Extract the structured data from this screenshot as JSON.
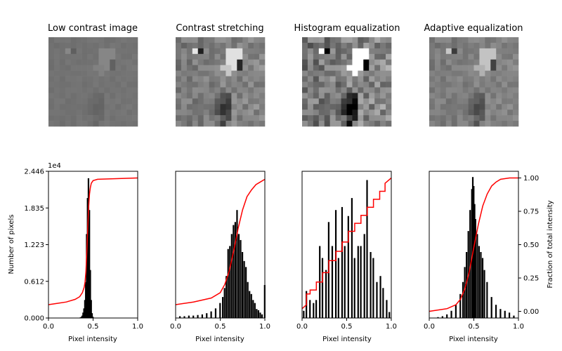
{
  "chart_data": [
    {
      "type": "image",
      "title": "Low contrast image",
      "colormap": "gray",
      "gray_range": [
        0.35,
        0.55
      ]
    },
    {
      "type": "image",
      "title": "Contrast stretching",
      "colormap": "gray",
      "gray_range": [
        0.0,
        1.0
      ]
    },
    {
      "type": "image",
      "title": "Histogram equalization",
      "colormap": "gray",
      "gray_range": [
        0.0,
        1.0
      ]
    },
    {
      "type": "image",
      "title": "Adaptive equalization",
      "colormap": "gray",
      "gray_range": [
        0.15,
        0.85
      ]
    },
    {
      "type": "bar",
      "xlabel": "Pixel intensity",
      "ylabel": "Number of pixels",
      "xlim": [
        0,
        1
      ],
      "ylim": [
        0,
        24460
      ],
      "x_ticks": [
        "0.0",
        "0.5",
        "1.0"
      ],
      "y_ticks": [
        "0.000",
        "0.612",
        "1.223",
        "1.835",
        "2.446"
      ],
      "y_tick_values": [
        0,
        6115,
        12230,
        18345,
        24460
      ],
      "y_scale_label": "1e4",
      "histogram_color": "#000000",
      "histogram_x": [
        0.36,
        0.37,
        0.38,
        0.39,
        0.4,
        0.41,
        0.42,
        0.43,
        0.44,
        0.45,
        0.46,
        0.47,
        0.48,
        0.49,
        0.5
      ],
      "histogram_values": [
        100,
        200,
        400,
        900,
        1600,
        3000,
        6000,
        14000,
        20000,
        23300,
        18000,
        8000,
        3000,
        800,
        200
      ],
      "cdf_name": "",
      "cdf_color": "#ff0000",
      "cdf_x": [
        0,
        0.1,
        0.2,
        0.3,
        0.35,
        0.38,
        0.4,
        0.41,
        0.42,
        0.43,
        0.44,
        0.45,
        0.46,
        0.47,
        0.48,
        0.5,
        0.55,
        1.0
      ],
      "cdf_y": [
        0.05,
        0.06,
        0.07,
        0.09,
        0.11,
        0.14,
        0.18,
        0.22,
        0.3,
        0.45,
        0.62,
        0.78,
        0.88,
        0.93,
        0.96,
        0.98,
        0.99,
        1.0
      ]
    },
    {
      "type": "bar",
      "xlabel": "Pixel intensity",
      "xlim": [
        0,
        1
      ],
      "ylim": [
        0,
        24460
      ],
      "x_ticks": [
        "0.0",
        "0.5",
        "1.0"
      ],
      "histogram_color": "#000000",
      "histogram_x": [
        0.05,
        0.1,
        0.15,
        0.2,
        0.25,
        0.3,
        0.35,
        0.4,
        0.45,
        0.5,
        0.53,
        0.55,
        0.57,
        0.59,
        0.61,
        0.63,
        0.65,
        0.67,
        0.69,
        0.71,
        0.73,
        0.75,
        0.77,
        0.79,
        0.81,
        0.83,
        0.85,
        0.87,
        0.89,
        0.91,
        0.93,
        0.95,
        0.97,
        1.0
      ],
      "histogram_values": [
        300,
        300,
        400,
        400,
        500,
        600,
        800,
        1100,
        1600,
        2500,
        3500,
        5000,
        7000,
        11500,
        12000,
        14000,
        15500,
        16000,
        18000,
        14000,
        13000,
        11000,
        9500,
        8500,
        6000,
        4500,
        4000,
        3000,
        2500,
        1500,
        1300,
        900,
        600,
        5500
      ],
      "cdf_color": "#ff0000",
      "cdf_x": [
        0,
        0.2,
        0.4,
        0.5,
        0.55,
        0.6,
        0.65,
        0.7,
        0.75,
        0.8,
        0.85,
        0.9,
        0.95,
        1.0
      ],
      "cdf_y": [
        0.05,
        0.07,
        0.1,
        0.14,
        0.2,
        0.3,
        0.45,
        0.62,
        0.76,
        0.86,
        0.91,
        0.95,
        0.97,
        0.99
      ]
    },
    {
      "type": "bar",
      "xlabel": "Pixel intensity",
      "xlim": [
        0,
        1
      ],
      "ylim": [
        0,
        24460
      ],
      "x_ticks": [
        "0.0",
        "0.5",
        "1.0"
      ],
      "histogram_color": "#000000",
      "histogram_x": [
        0.02,
        0.05,
        0.09,
        0.13,
        0.16,
        0.2,
        0.23,
        0.27,
        0.3,
        0.34,
        0.38,
        0.41,
        0.45,
        0.48,
        0.52,
        0.56,
        0.59,
        0.63,
        0.66,
        0.7,
        0.73,
        0.77,
        0.8,
        0.84,
        0.88,
        0.91,
        0.95,
        0.98
      ],
      "histogram_values": [
        1200,
        4500,
        3000,
        2500,
        3000,
        12000,
        10000,
        8000,
        16000,
        12000,
        18000,
        10000,
        18500,
        12000,
        17000,
        20000,
        10000,
        12000,
        12000,
        14000,
        23000,
        11000,
        10000,
        6000,
        7000,
        5000,
        3000,
        1000
      ],
      "cdf_color": "#ff0000",
      "cdf_x": [
        0,
        0.05,
        0.05,
        0.09,
        0.09,
        0.16,
        0.16,
        0.23,
        0.23,
        0.3,
        0.3,
        0.38,
        0.38,
        0.45,
        0.45,
        0.52,
        0.52,
        0.59,
        0.59,
        0.66,
        0.66,
        0.73,
        0.73,
        0.8,
        0.8,
        0.87,
        0.87,
        0.93,
        0.93,
        1.0
      ],
      "cdf_y": [
        0.02,
        0.05,
        0.13,
        0.13,
        0.16,
        0.16,
        0.22,
        0.22,
        0.29,
        0.29,
        0.38,
        0.38,
        0.45,
        0.45,
        0.52,
        0.52,
        0.6,
        0.6,
        0.66,
        0.66,
        0.72,
        0.72,
        0.78,
        0.78,
        0.84,
        0.84,
        0.9,
        0.9,
        0.96,
        1.0
      ]
    },
    {
      "type": "bar",
      "xlabel": "Pixel intensity",
      "ylabel_right": "Fraction of total intensity",
      "xlim": [
        0,
        1
      ],
      "ylim": [
        0,
        24460
      ],
      "ylim_right": [
        -0.05,
        1.05
      ],
      "x_ticks": [
        "0.0",
        "0.5",
        "1.0"
      ],
      "y_right_ticks": [
        "0.00",
        "0.25",
        "0.50",
        "0.75",
        "1.00"
      ],
      "y_right_tick_values": [
        0,
        0.25,
        0.5,
        0.75,
        1.0
      ],
      "histogram_color": "#000000",
      "histogram_x": [
        0.05,
        0.1,
        0.15,
        0.2,
        0.25,
        0.3,
        0.35,
        0.38,
        0.4,
        0.42,
        0.44,
        0.46,
        0.48,
        0.49,
        0.5,
        0.51,
        0.52,
        0.54,
        0.56,
        0.58,
        0.6,
        0.62,
        0.65,
        0.7,
        0.75,
        0.8,
        0.85,
        0.9,
        0.95
      ],
      "histogram_values": [
        50,
        150,
        300,
        600,
        1200,
        2200,
        4000,
        6000,
        8500,
        11000,
        14500,
        18000,
        21500,
        23500,
        22000,
        19000,
        16500,
        14000,
        12000,
        11000,
        10000,
        8000,
        6000,
        3500,
        2200,
        1500,
        1200,
        900,
        400
      ],
      "cdf_color": "#ff0000",
      "cdf_x": [
        0,
        0.2,
        0.3,
        0.35,
        0.4,
        0.45,
        0.5,
        0.55,
        0.6,
        0.65,
        0.7,
        0.75,
        0.8,
        0.9,
        1.0
      ],
      "cdf_y": [
        0.0,
        0.02,
        0.05,
        0.09,
        0.17,
        0.3,
        0.48,
        0.65,
        0.79,
        0.88,
        0.94,
        0.97,
        0.99,
        1.0,
        1.0
      ]
    }
  ]
}
